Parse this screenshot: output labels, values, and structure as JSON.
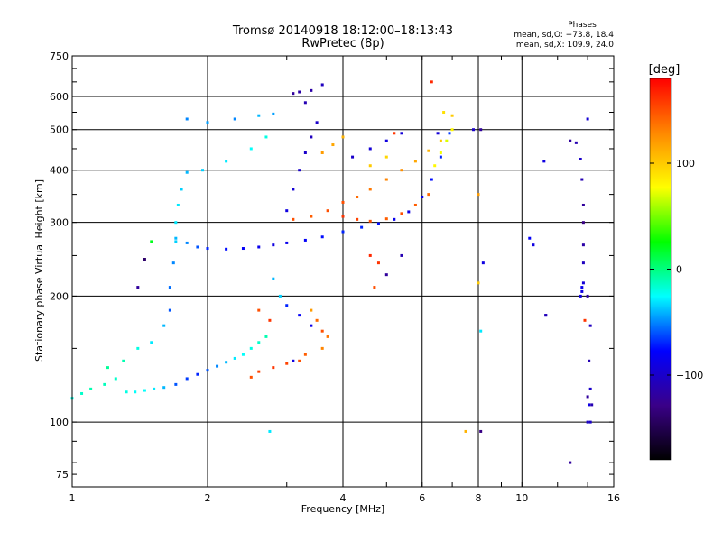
{
  "chart_data": {
    "type": "scatter",
    "title": "Tromsø 20140918 18:12:00–18:13:43",
    "subtitle": "RwPretec (8p)",
    "info_title": "Phases",
    "info_lines": [
      "mean, sd,O: −73.8, 18.4",
      "mean, sd,X: 109.9, 24.0"
    ],
    "xlabel": "Frequency [MHz]",
    "ylabel": "Stationary phase Virtual Height [km]",
    "xscale": "log",
    "yscale": "log",
    "xlim": [
      1,
      16
    ],
    "ylim": [
      70,
      750
    ],
    "x_ticks": [
      1,
      2,
      4,
      6,
      8,
      10,
      16
    ],
    "x_tick_labels": [
      "1",
      "2",
      "4",
      "6",
      "8",
      "10",
      "16"
    ],
    "x_gridlines": [
      2,
      4,
      6,
      8,
      10
    ],
    "y_ticks": [
      75,
      100,
      200,
      300,
      400,
      500,
      600,
      750
    ],
    "y_tick_labels": [
      "75",
      "100",
      "200",
      "300",
      "400",
      "500",
      "600",
      "750"
    ],
    "y_gridlines": [
      100,
      200,
      300,
      400,
      500,
      600
    ],
    "grid": true,
    "legend": "none",
    "colorbar": {
      "label": "[deg]",
      "range": [
        -180,
        180
      ],
      "ticks": [
        100,
        0,
        -100
      ],
      "tick_labels": [
        "100",
        "0",
        "−100"
      ],
      "colors": [
        "#ff0000",
        "#ff8800",
        "#ffff00",
        "#00ff00",
        "#00ffff",
        "#0000ff",
        "#3a0088",
        "#000000"
      ]
    },
    "series": [
      {
        "points": [
          [
            1.0,
            114,
            -20
          ],
          [
            1.05,
            117,
            -15
          ],
          [
            1.1,
            120,
            -10
          ],
          [
            1.18,
            123,
            -12
          ],
          [
            1.25,
            127,
            -15
          ],
          [
            1.32,
            118,
            -20
          ],
          [
            1.38,
            118,
            -25
          ],
          [
            1.45,
            119,
            -25
          ],
          [
            1.52,
            120,
            -30
          ],
          [
            1.6,
            121,
            -40
          ],
          [
            1.7,
            123,
            -60
          ],
          [
            1.8,
            127,
            -65
          ],
          [
            1.9,
            130,
            -70
          ],
          [
            2.0,
            133,
            -60
          ],
          [
            2.1,
            136,
            -50
          ],
          [
            2.2,
            139,
            -40
          ],
          [
            2.3,
            142,
            -30
          ],
          [
            2.4,
            145,
            -25
          ],
          [
            2.5,
            150,
            -20
          ],
          [
            2.6,
            155,
            -15
          ],
          [
            2.7,
            160,
            -10
          ],
          [
            1.2,
            135,
            -5
          ],
          [
            1.3,
            140,
            -10
          ],
          [
            1.4,
            150,
            -20
          ],
          [
            1.5,
            155,
            -30
          ],
          [
            1.6,
            170,
            -40
          ],
          [
            1.65,
            185,
            -60
          ],
          [
            1.65,
            210,
            -55
          ],
          [
            1.68,
            240,
            -50
          ],
          [
            1.7,
            270,
            -35
          ],
          [
            1.7,
            300,
            -30
          ],
          [
            1.72,
            330,
            -30
          ],
          [
            1.75,
            360,
            -35
          ],
          [
            1.8,
            395,
            -40
          ],
          [
            1.95,
            400,
            -35
          ],
          [
            2.2,
            420,
            -30
          ],
          [
            2.5,
            450,
            -25
          ],
          [
            2.7,
            480,
            -20
          ],
          [
            1.8,
            530,
            -50
          ],
          [
            2.0,
            520,
            -45
          ],
          [
            2.3,
            530,
            -50
          ],
          [
            2.6,
            540,
            -40
          ],
          [
            2.8,
            545,
            -45
          ],
          [
            1.7,
            275,
            -40
          ],
          [
            1.8,
            268,
            -50
          ],
          [
            1.9,
            262,
            -60
          ],
          [
            2.0,
            260,
            -70
          ],
          [
            2.2,
            259,
            -75
          ],
          [
            2.4,
            260,
            -80
          ],
          [
            2.6,
            262,
            -85
          ],
          [
            2.8,
            265,
            -90
          ],
          [
            3.0,
            268,
            -85
          ],
          [
            3.3,
            272,
            -80
          ],
          [
            3.6,
            277,
            -75
          ],
          [
            4.0,
            285,
            -70
          ],
          [
            4.4,
            292,
            -70
          ],
          [
            4.8,
            298,
            -75
          ],
          [
            5.2,
            305,
            -85
          ],
          [
            5.6,
            318,
            -90
          ],
          [
            6.0,
            345,
            -85
          ],
          [
            6.3,
            380,
            -75
          ],
          [
            6.6,
            430,
            -70
          ],
          [
            6.9,
            490,
            -65
          ],
          [
            3.0,
            320,
            -90
          ],
          [
            3.1,
            360,
            -95
          ],
          [
            3.2,
            400,
            -100
          ],
          [
            3.3,
            440,
            -100
          ],
          [
            3.4,
            480,
            -105
          ],
          [
            3.5,
            520,
            -100
          ],
          [
            3.3,
            580,
            -110
          ],
          [
            3.4,
            620,
            -115
          ],
          [
            3.1,
            610,
            -120
          ],
          [
            3.2,
            615,
            -115
          ],
          [
            3.6,
            640,
            -105
          ],
          [
            4.2,
            430,
            -100
          ],
          [
            4.6,
            450,
            -95
          ],
          [
            5.0,
            470,
            -90
          ],
          [
            5.4,
            490,
            -95
          ],
          [
            2.8,
            220,
            -40
          ],
          [
            2.9,
            200,
            -35
          ],
          [
            3.0,
            190,
            -70
          ],
          [
            3.2,
            180,
            -80
          ],
          [
            3.4,
            170,
            -85
          ],
          [
            3.1,
            140,
            -90
          ],
          [
            2.6,
            185,
            150
          ],
          [
            2.75,
            175,
            160
          ],
          [
            3.5,
            175,
            140
          ],
          [
            3.6,
            165,
            150
          ],
          [
            3.7,
            160,
            135
          ],
          [
            3.3,
            145,
            145
          ],
          [
            3.2,
            140,
            150
          ],
          [
            3.0,
            138,
            155
          ],
          [
            2.8,
            135,
            160
          ],
          [
            2.6,
            132,
            155
          ],
          [
            2.5,
            128,
            150
          ],
          [
            3.4,
            185,
            120
          ],
          [
            3.6,
            150,
            130
          ],
          [
            4.0,
            310,
            160
          ],
          [
            4.3,
            305,
            155
          ],
          [
            4.6,
            302,
            150
          ],
          [
            5.0,
            306,
            145
          ],
          [
            5.4,
            315,
            150
          ],
          [
            5.8,
            330,
            145
          ],
          [
            6.2,
            350,
            140
          ],
          [
            3.1,
            305,
            150
          ],
          [
            3.4,
            310,
            145
          ],
          [
            3.7,
            320,
            150
          ],
          [
            4.0,
            335,
            150
          ],
          [
            4.3,
            345,
            140
          ],
          [
            4.6,
            360,
            135
          ],
          [
            5.0,
            380,
            130
          ],
          [
            5.4,
            400,
            125
          ],
          [
            5.8,
            420,
            115
          ],
          [
            6.2,
            445,
            110
          ],
          [
            6.6,
            470,
            100
          ],
          [
            3.6,
            440,
            120
          ],
          [
            3.8,
            460,
            115
          ],
          [
            4.0,
            480,
            110
          ],
          [
            4.6,
            410,
            100
          ],
          [
            5.0,
            430,
            95
          ],
          [
            6.4,
            410,
            80
          ],
          [
            6.6,
            440,
            75
          ],
          [
            6.8,
            470,
            70
          ],
          [
            7.0,
            500,
            80
          ],
          [
            7.0,
            540,
            100
          ],
          [
            6.7,
            550,
            90
          ],
          [
            5.2,
            490,
            160
          ],
          [
            6.3,
            650,
            165
          ],
          [
            8.0,
            350,
            120
          ],
          [
            8.2,
            240,
            -90
          ],
          [
            8.0,
            215,
            100
          ],
          [
            4.8,
            240,
            160
          ],
          [
            4.6,
            250,
            165
          ],
          [
            4.7,
            210,
            150
          ],
          [
            5.0,
            225,
            -120
          ],
          [
            5.4,
            250,
            -110
          ],
          [
            1.5,
            270,
            20
          ],
          [
            1.45,
            245,
            -140
          ],
          [
            1.4,
            210,
            -120
          ],
          [
            2.75,
            95,
            -30
          ],
          [
            7.5,
            95,
            110
          ],
          [
            8.1,
            95,
            -130
          ],
          [
            8.1,
            165,
            -30
          ],
          [
            6.5,
            490,
            -95
          ],
          [
            7.8,
            500,
            -100
          ],
          [
            8.1,
            500,
            -120
          ],
          [
            10.4,
            275,
            -80
          ],
          [
            10.6,
            265,
            -90
          ],
          [
            11.2,
            420,
            -90
          ],
          [
            11.3,
            180,
            -80
          ],
          [
            11.3,
            180,
            -110
          ],
          [
            12.8,
            470,
            -120
          ],
          [
            13.2,
            465,
            -110
          ],
          [
            14.0,
            530,
            -95
          ],
          [
            13.5,
            425,
            -100
          ],
          [
            13.6,
            380,
            -110
          ],
          [
            13.7,
            330,
            -120
          ],
          [
            13.7,
            300,
            -130
          ],
          [
            13.7,
            265,
            -115
          ],
          [
            13.7,
            240,
            -105
          ],
          [
            13.7,
            215,
            -95
          ],
          [
            13.5,
            200,
            -90
          ],
          [
            13.6,
            210,
            -85
          ],
          [
            14.0,
            200,
            -115
          ],
          [
            14.2,
            170,
            -105
          ],
          [
            14.1,
            140,
            -110
          ],
          [
            14.2,
            120,
            -100
          ],
          [
            14.0,
            115,
            -120
          ],
          [
            14.1,
            110,
            -90
          ],
          [
            14.0,
            100,
            -100
          ],
          [
            12.8,
            80,
            -120
          ],
          [
            14.2,
            100,
            -100
          ],
          [
            14.3,
            110,
            -110
          ],
          [
            13.8,
            175,
            160
          ],
          [
            13.6,
            205,
            -90
          ]
        ]
      }
    ]
  }
}
